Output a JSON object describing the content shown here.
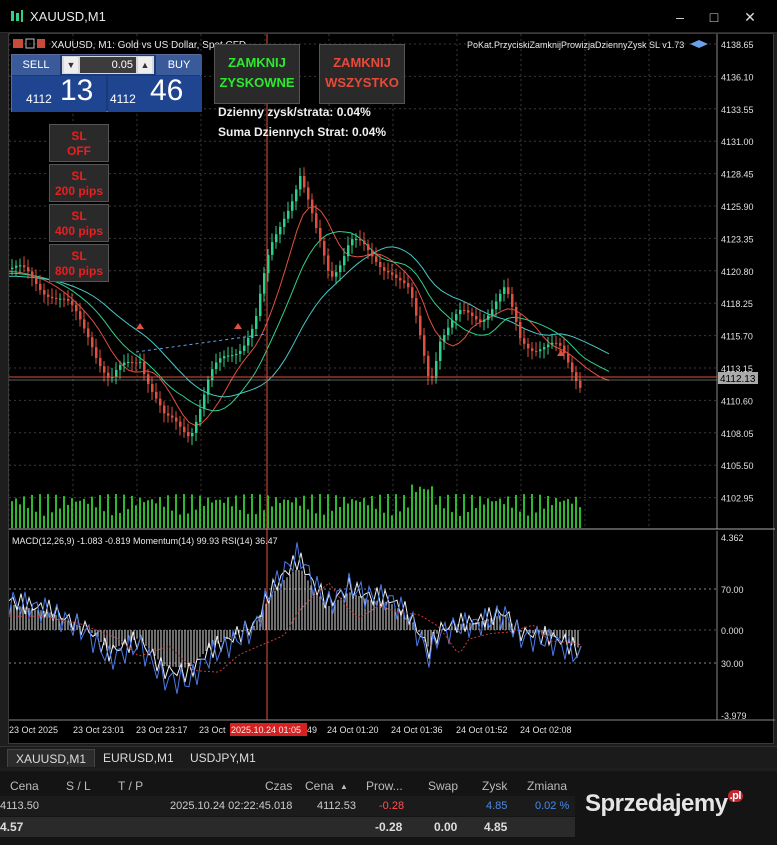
{
  "window": {
    "title": "XAUUSD,M1",
    "colors": {
      "bg": "#000000",
      "bull": "#2fd18a",
      "bear": "#e0503e",
      "grid": "#444444",
      "volume": "#2db82d"
    }
  },
  "chart": {
    "header": "XAUUSD, M1:  Gold vs US Dollar, Spot CFD",
    "ea_label": "PoKat.PrzyciskiZamknijProwizjaDziennyZysk SL v1.73",
    "current_price": "4112.13",
    "price_ticks": [
      "4138.65",
      "4136.10",
      "4133.55",
      "4131.00",
      "4128.45",
      "4125.90",
      "4123.35",
      "4120.80",
      "4118.25",
      "4115.70",
      "4113.15",
      "4110.60",
      "4108.05",
      "4105.50",
      "4102.95"
    ],
    "indicator_header": "MACD(12,26,9) -1.083 -0.819 Momentum(14) 99.93 RSI(14) 36.47",
    "indicator_ticks": [
      "4.362",
      "70.00",
      "0.000",
      "30.00",
      "-3.979"
    ],
    "time_ticks": [
      "23 Oct 2025",
      "23 Oct 23:01",
      "23 Oct 23:17",
      "23 Oct",
      "49",
      "24 Oct 01:20",
      "24 Oct 01:36",
      "24 Oct 01:52",
      "24 Oct 02:08"
    ],
    "cursor_time": "2025.10.24 01:05"
  },
  "trade_panel": {
    "sell_label": "SELL",
    "buy_label": "BUY",
    "lot": "0.05",
    "sell_prefix": "4112",
    "sell_price": "13",
    "buy_prefix": "4112",
    "buy_price": "46"
  },
  "ea_buttons": {
    "close_profit": [
      "ZAMKNIJ",
      "ZYSKOWNE"
    ],
    "close_all": [
      "ZAMKNIJ",
      "WSZYSTKO"
    ],
    "daily_profit": "Dzienny zysk/strata: 0.04%",
    "daily_loss": "Suma Dziennych Strat: 0.04%",
    "sl_buttons": [
      [
        "SL",
        "OFF"
      ],
      [
        "SL",
        "200 pips"
      ],
      [
        "SL",
        "400 pips"
      ],
      [
        "SL",
        "800 pips"
      ]
    ]
  },
  "tabs": [
    "XAUUSD,M1",
    "EURUSD,M1",
    "USDJPY,M1"
  ],
  "terminal": {
    "headers": [
      "Cena",
      "S / L",
      "T / P",
      "Czas",
      "Cena",
      "Prow...",
      "Swap",
      "Zysk",
      "Zmiana"
    ],
    "row": {
      "price_open": "4113.50",
      "time": "2025.10.24 02:22:45.018",
      "price": "4112.53",
      "commission": "-0.28",
      "profit": "4.85",
      "change": "0.02 %"
    },
    "total": {
      "balance": "4.57",
      "commission": "-0.28",
      "swap": "0.00",
      "profit": "4.85"
    }
  },
  "watermark": "Sprzedajemy.pl"
}
